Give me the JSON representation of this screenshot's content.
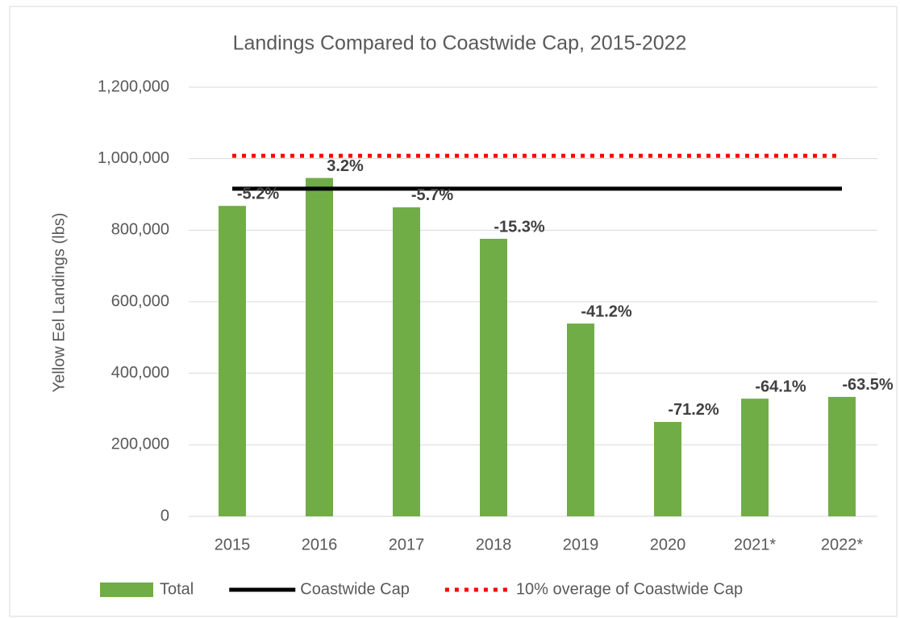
{
  "chart_data": {
    "type": "bar",
    "title": "Landings Compared to Coastwide Cap, 2015-2022",
    "y_label": "Yellow Eel Landings (lbs)",
    "categories": [
      "2015",
      "2016",
      "2017",
      "2018",
      "2019",
      "2020",
      "2021*",
      "2022*"
    ],
    "series": [
      {
        "name": "Total",
        "type": "bar",
        "color": "#70ad47",
        "values": [
          868000,
          946000,
          864000,
          776000,
          539000,
          264000,
          329000,
          334000
        ]
      },
      {
        "name": "Coastwide Cap",
        "type": "line",
        "color": "#000000",
        "dash": "solid",
        "values": [
          916000,
          916000,
          916000,
          916000,
          916000,
          916000,
          916000,
          916000
        ]
      },
      {
        "name": "10% overage of Coastwide Cap",
        "type": "line",
        "color": "#ff0000",
        "dash": "dotted",
        "values": [
          1008000,
          1008000,
          1008000,
          1008000,
          1008000,
          1008000,
          1008000,
          1008000
        ]
      }
    ],
    "annotations": [
      "-5.2%",
      "3.2%",
      "-5.7%",
      "-15.3%",
      "-41.2%",
      "-71.2%",
      "-64.1%",
      "-63.5%"
    ],
    "ylim": [
      0,
      1200000
    ],
    "yticks": [
      0,
      {
        "value": 200000,
        "label": "200,000"
      },
      {
        "value": 400000,
        "label": "400,000"
      },
      {
        "value": 600000,
        "label": "600,000"
      },
      {
        "value": 800000,
        "label": "800,000"
      },
      {
        "value": 1000000,
        "label": "1,000,000"
      },
      {
        "value": 1200000,
        "label": "1,200,000"
      }
    ],
    "grid": true,
    "legend": "bottom"
  }
}
